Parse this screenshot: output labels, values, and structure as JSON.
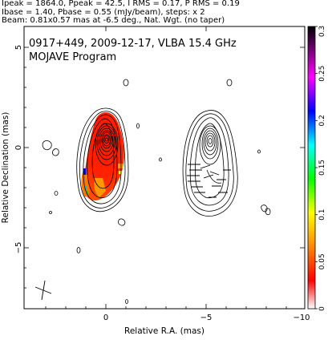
{
  "header": {
    "line1": "Ipeak = 1864.0, Ppeak = 42.5, I RMS = 0.17, P RMS = 0.19",
    "line2": "Ibase = 1.40, Pbase = 0.55 (mJy/beam), steps: x 2",
    "line3": "Beam: 0.81x0.57 mas at -6.5 deg., Nat. Wgt. (no taper)"
  },
  "chart_data": {
    "type": "contour-map",
    "title": "0917+449, 2009-12-17, VLBA 15.4 GHz",
    "subtitle": "MOJAVE Program",
    "xlabel": "Relative R.A. (mas)",
    "ylabel": "Relative Declination (mas)",
    "x_ticks": [
      "0",
      "−5",
      "−10"
    ],
    "y_ticks": [
      "5",
      "0",
      "−5"
    ],
    "colorbar_ticks": [
      "0",
      "0.05",
      "0.1",
      "0.15",
      "0.2",
      "0.25",
      "0.3"
    ],
    "colorbar_range": [
      0,
      0.3
    ],
    "colormap": [
      "#ffffff",
      "#ff0000",
      "#ff8800",
      "#ffff00",
      "#00ff00",
      "#00ffff",
      "#0000ff",
      "#ff00ff",
      "#000000"
    ]
  }
}
